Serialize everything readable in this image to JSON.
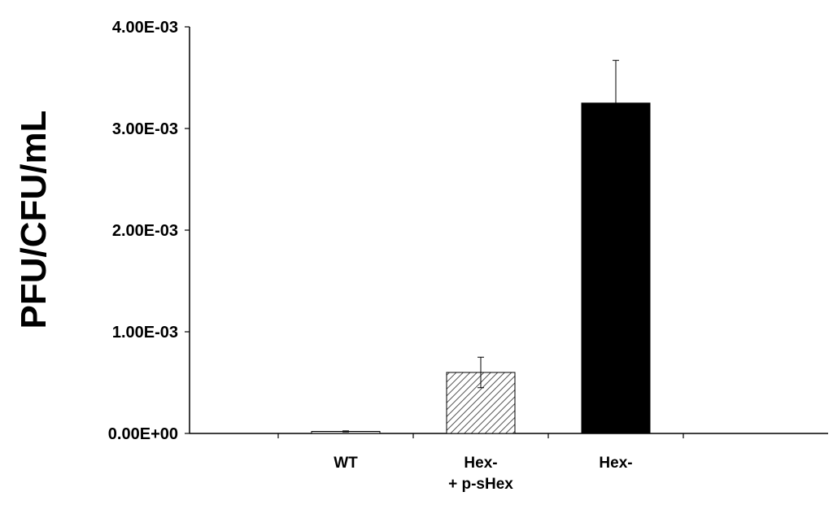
{
  "chart_data": {
    "type": "bar",
    "title": "",
    "xlabel": "",
    "ylabel": "PFU/CFU/mL",
    "ylim": [
      0,
      0.004
    ],
    "yticks": [
      {
        "value": 0,
        "label": "0.00E+00"
      },
      {
        "value": 0.001,
        "label": "1.00E-03"
      },
      {
        "value": 0.002,
        "label": "2.00E-03"
      },
      {
        "value": 0.003,
        "label": "3.00E-03"
      },
      {
        "value": 0.004,
        "label": "4.00E-03"
      }
    ],
    "categories": [
      {
        "lines": [
          "WT"
        ]
      },
      {
        "lines": [
          "Hex-",
          "+ p-sHex"
        ]
      },
      {
        "lines": [
          "Hex-"
        ]
      }
    ],
    "values": [
      2e-05,
      0.0006,
      0.00325
    ],
    "errors": [
      5e-06,
      0.00015,
      0.00042
    ],
    "bar_styles": [
      "light-gray",
      "hatched",
      "black"
    ],
    "grid": false,
    "legend": "none"
  }
}
